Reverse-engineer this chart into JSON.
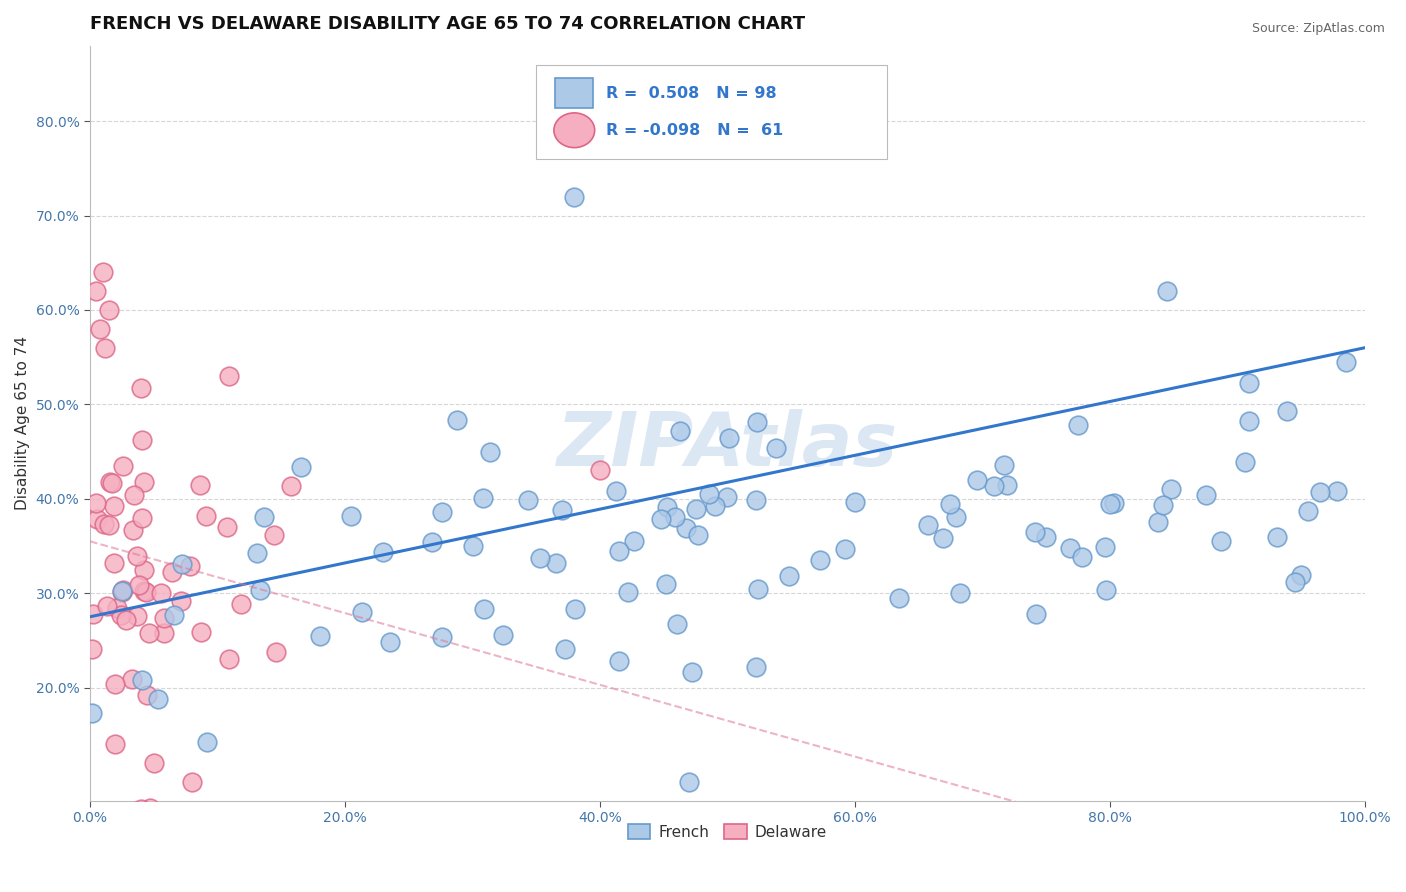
{
  "title": "FRENCH VS DELAWARE DISABILITY AGE 65 TO 74 CORRELATION CHART",
  "source": "Source: ZipAtlas.com",
  "ylabel": "Disability Age 65 to 74",
  "xlim": [
    0.0,
    1.0
  ],
  "ylim": [
    0.08,
    0.88
  ],
  "xticks": [
    0.0,
    0.2,
    0.4,
    0.6,
    0.8,
    1.0
  ],
  "xticklabels": [
    "0.0%",
    "20.0%",
    "40.0%",
    "60.0%",
    "80.0%",
    "100.0%"
  ],
  "yticks": [
    0.2,
    0.3,
    0.4,
    0.5,
    0.6,
    0.7,
    0.8
  ],
  "yticklabels": [
    "20.0%",
    "30.0%",
    "40.0%",
    "50.0%",
    "60.0%",
    "70.0%",
    "80.0%"
  ],
  "french_R": 0.508,
  "french_N": 98,
  "delaware_R": -0.098,
  "delaware_N": 61,
  "french_color": "#adc9e8",
  "french_edge": "#6699cc",
  "delaware_color": "#f5afc0",
  "delaware_edge": "#dd6688",
  "french_line_color": "#3377cc",
  "delaware_line_color": "#dd7799",
  "watermark": "ZIPAtlas",
  "watermark_color": "#c5d8ee",
  "legend_label_french": "French",
  "legend_label_delaware": "Delaware",
  "background_color": "#ffffff",
  "grid_color": "#cccccc",
  "title_fontsize": 13,
  "axis_label_fontsize": 11,
  "tick_color": "#4477aa"
}
